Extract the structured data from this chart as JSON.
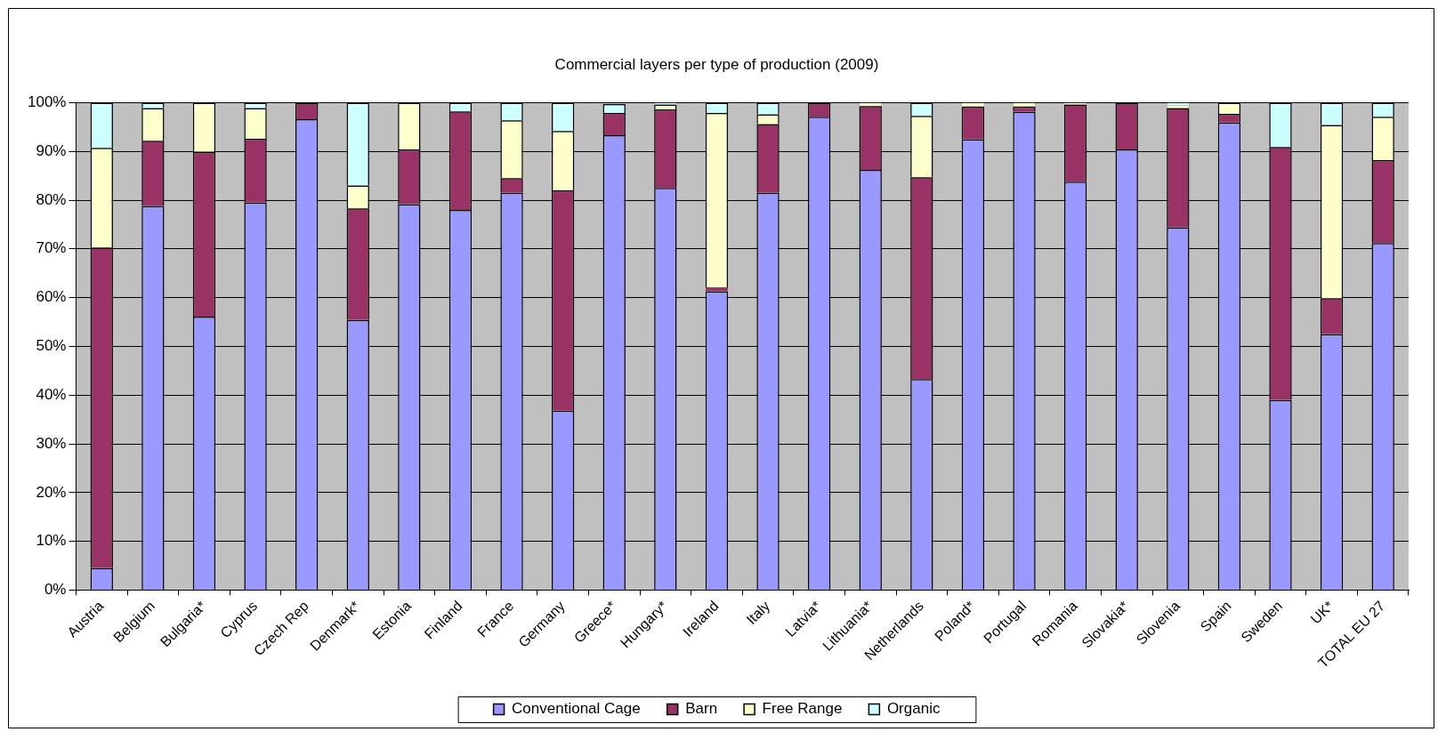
{
  "chart_data": {
    "type": "bar",
    "title": "Commercial layers per type of production (2009)",
    "stacked": true,
    "grid": "y",
    "legend": "bottom",
    "categories": [
      "Austria",
      "Belgium",
      "Bulgaria*",
      "Cyprus",
      "Czech Rep",
      "Denmark*",
      "Estonia",
      "Finland",
      "France",
      "Germany",
      "Greece*",
      "Hungary*",
      "Ireland",
      "Italy",
      "Latvia*",
      "Lithuania*",
      "Netherlands",
      "Poland*",
      "Portugal",
      "Romania",
      "Slovakia*",
      "Slovenia",
      "Spain",
      "Sweden",
      "UK*",
      "TOTAL EU 27"
    ],
    "ylim": [
      0,
      100
    ],
    "yticks": [
      {
        "value": 0,
        "label": "0%"
      },
      {
        "value": 10,
        "label": "10%"
      },
      {
        "value": 20,
        "label": "20%"
      },
      {
        "value": 30,
        "label": "30%"
      },
      {
        "value": 40,
        "label": "40%"
      },
      {
        "value": 50,
        "label": "50%"
      },
      {
        "value": 60,
        "label": "60%"
      },
      {
        "value": 70,
        "label": "70%"
      },
      {
        "value": 80,
        "label": "80%"
      },
      {
        "value": 90,
        "label": "90%"
      },
      {
        "value": 100,
        "label": "100%"
      }
    ],
    "series": [
      {
        "name": "Conventional Cage",
        "color": "#9999ff",
        "values": [
          4.5,
          78.8,
          56.1,
          79.5,
          96.6,
          55.4,
          79.2,
          78.0,
          81.5,
          36.8,
          93.3,
          82.5,
          61.3,
          81.5,
          97.1,
          86.2,
          43.3,
          92.5,
          98.1,
          83.8,
          90.4,
          74.4,
          95.9,
          39.0,
          52.5,
          71.2
        ]
      },
      {
        "name": "Barn",
        "color": "#993366",
        "values": [
          65.8,
          13.4,
          33.8,
          13.1,
          3.4,
          22.9,
          11.2,
          20.2,
          3.0,
          45.2,
          4.6,
          16.1,
          0.8,
          14.1,
          2.9,
          13.1,
          41.4,
          6.7,
          1.1,
          15.8,
          9.6,
          24.5,
          1.8,
          51.9,
          7.4,
          17.0
        ]
      },
      {
        "name": "Free Range",
        "color": "#ffffcc",
        "values": [
          20.4,
          6.7,
          10.1,
          6.3,
          0,
          4.7,
          9.6,
          0,
          11.9,
          12.2,
          null,
          1.0,
          35.8,
          2.0,
          0,
          0.7,
          12.6,
          0.8,
          0.8,
          0.4,
          0,
          0.6,
          2.3,
          0,
          35.5,
          8.9
        ]
      },
      {
        "name": "Organic",
        "color": "#ccffff",
        "values": [
          9.3,
          1.1,
          0,
          1.1,
          0,
          17.0,
          0,
          1.8,
          3.6,
          5.8,
          1.8,
          0.4,
          2.1,
          2.4,
          0,
          0,
          2.7,
          0,
          0,
          0,
          0,
          0.5,
          0,
          9.1,
          4.6,
          2.9
        ]
      }
    ]
  }
}
